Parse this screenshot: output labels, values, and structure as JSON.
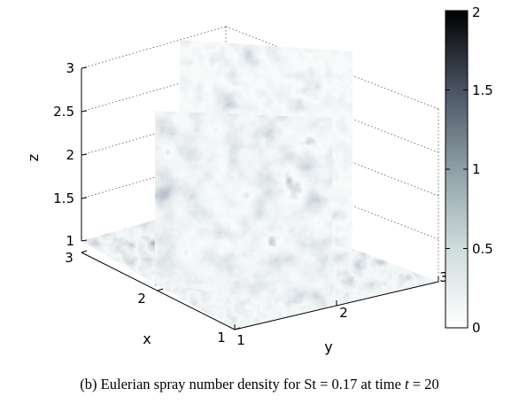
{
  "figure": {
    "axes": {
      "z_label": "z",
      "x_label": "x",
      "y_label": "y",
      "z_ticks": [
        "1",
        "1.5",
        "2",
        "2.5",
        "3"
      ],
      "x_ticks": [
        "1",
        "2",
        "3"
      ],
      "y_ticks": [
        "1",
        "2",
        "3"
      ]
    },
    "colorbar": {
      "ticks": [
        "0",
        "0.5",
        "1",
        "1.5",
        "2"
      ],
      "range": [
        0,
        2
      ],
      "colormap": [
        "#ffffff",
        "#cfdcdc",
        "#8f9fa6",
        "#4a5363",
        "#000000"
      ]
    },
    "field_colors": {
      "light": "#e8eef0",
      "mid": "#7d8a99",
      "dark": "#1c1f2c"
    }
  },
  "caption": {
    "prefix": "(b) Eulerian spray number density for ",
    "st_symbol": "St",
    "st_eq": " = 0.17 at time ",
    "t_symbol": "t",
    "t_eq": " = 20"
  }
}
